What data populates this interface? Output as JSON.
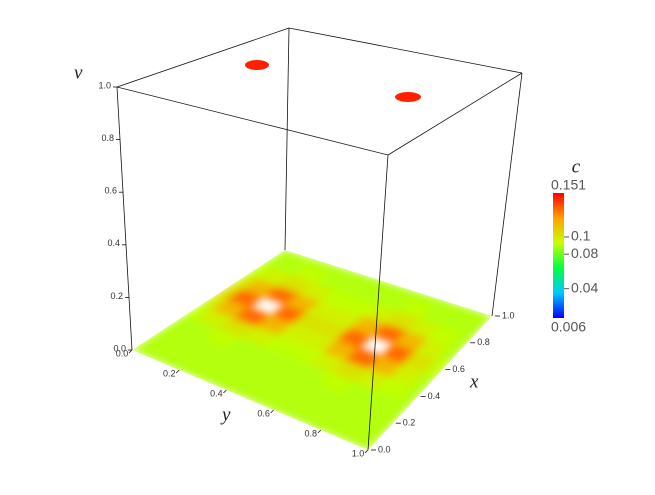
{
  "chart_data": {
    "type": "surface",
    "axis_labels": {
      "x": "x",
      "y": "y",
      "v": "v",
      "c": "c"
    },
    "x": [
      0,
      0.1,
      0.2,
      0.3,
      0.4,
      0.5,
      0.6,
      0.7,
      0.8,
      0.9,
      1
    ],
    "y": [
      0,
      0.1,
      0.2,
      0.3,
      0.4,
      0.5,
      0.6,
      0.7,
      0.8,
      0.9,
      1
    ],
    "values": [
      [
        0.09,
        0.09,
        0.09,
        0.09,
        0.092,
        0.097,
        0.102,
        0.097,
        0.092,
        0.09,
        0.09
      ],
      [
        0.09,
        0.09,
        0.09,
        0.09,
        0.097,
        0.115,
        0.132,
        0.115,
        0.097,
        0.09,
        0.09
      ],
      [
        0.09,
        0.09,
        0.09,
        0.092,
        0.102,
        0.132,
        null,
        0.132,
        0.102,
        0.092,
        0.09
      ],
      [
        0.09,
        0.09,
        0.09,
        0.09,
        0.097,
        0.115,
        0.132,
        0.115,
        0.097,
        0.09,
        0.09
      ],
      [
        0.09,
        0.09,
        0.09,
        0.09,
        0.092,
        0.097,
        0.102,
        0.097,
        0.092,
        0.09,
        0.09
      ],
      [
        0.09,
        0.09,
        0.09,
        0.09,
        0.092,
        0.097,
        0.102,
        0.097,
        0.092,
        0.09,
        0.09
      ],
      [
        0.09,
        0.09,
        0.09,
        0.09,
        0.097,
        0.115,
        0.132,
        0.115,
        0.097,
        0.09,
        0.09
      ],
      [
        0.09,
        0.09,
        0.09,
        0.092,
        0.102,
        0.132,
        null,
        0.132,
        0.102,
        0.092,
        0.09
      ],
      [
        0.09,
        0.09,
        0.09,
        0.09,
        0.097,
        0.115,
        0.132,
        0.115,
        0.097,
        0.09,
        0.09
      ],
      [
        0.09,
        0.09,
        0.09,
        0.09,
        0.092,
        0.097,
        0.102,
        0.097,
        0.092,
        0.09,
        0.09
      ],
      [
        0.09,
        0.09,
        0.09,
        0.09,
        0.09,
        0.09,
        0.092,
        0.09,
        0.09,
        0.09,
        0.09
      ]
    ],
    "xlim": [
      0,
      1
    ],
    "xticks": [
      {
        "value": 0,
        "label": "0.0"
      },
      0.2,
      0.4,
      0.6,
      0.8,
      {
        "value": 1,
        "label": "1.0"
      }
    ],
    "ylim": [
      0,
      1
    ],
    "yticks": [
      {
        "value": 0,
        "label": "0.0"
      },
      0.2,
      0.4,
      0.6,
      0.8,
      {
        "value": 1,
        "label": "1.0"
      }
    ],
    "vlim": [
      0,
      1
    ],
    "vticks": [
      {
        "value": 0,
        "label": "0.0"
      },
      0.2,
      0.4,
      0.6,
      0.8,
      {
        "value": 1,
        "label": "1.0"
      }
    ],
    "clim": [
      0.006,
      0.151
    ],
    "cticks": [
      0.04,
      0.08,
      0.1
    ],
    "colormap": [
      "#0000ff",
      "#00c8ff",
      "#00ff40",
      "#c8ff00",
      "#ffa000",
      "#ff0000"
    ]
  }
}
